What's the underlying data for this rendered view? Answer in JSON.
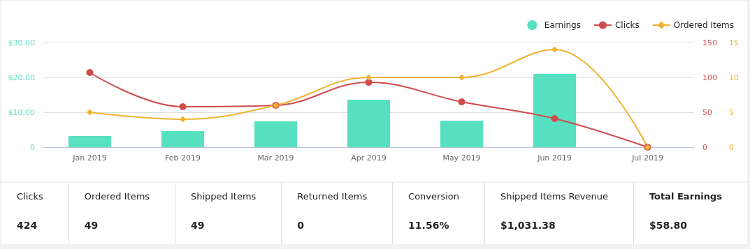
{
  "chart_data": [
    {
      "type": "bar",
      "categories": [
        "Jan 2019",
        "Feb 2019",
        "Mar 2019",
        "Apr 2019",
        "May 2019",
        "Jun 2019",
        "Jul 2019"
      ],
      "series": [
        {
          "name": "Earnings",
          "color": "#57e1c1",
          "values": [
            3.2,
            4.6,
            7.4,
            13.6,
            7.6,
            21,
            0
          ]
        },
        {
          "name": "Clicks",
          "type": "line",
          "axis": "y2",
          "marker": "circle",
          "color": "#d14b4b",
          "values": [
            107,
            58,
            60,
            93,
            65,
            41,
            0
          ]
        },
        {
          "name": "Ordered Items",
          "type": "line",
          "axis": "y3",
          "marker": "diamond",
          "color": "#f0b330",
          "values": [
            5,
            4,
            6,
            10,
            10,
            14,
            0
          ]
        }
      ],
      "ylim": [
        0,
        30
      ],
      "yticks": [
        0,
        {
          "value": 10,
          "label": "$10.00"
        },
        {
          "value": 20,
          "label": "$20.00"
        },
        {
          "value": 30,
          "label": "$30.00"
        }
      ],
      "y2lim": [
        0,
        150
      ],
      "y2ticks": [
        0,
        50,
        100,
        150
      ],
      "y3lim": [
        0,
        15
      ],
      "y3ticks": [
        0,
        5,
        10,
        15
      ],
      "grid": "y",
      "legend": "top right"
    },
    {
      "type": "other",
      "categories": [
        "Clicks",
        "Ordered Items",
        "Shipped Items",
        "Returned Items",
        "Conversion",
        "Shipped Items Revenue",
        "Total Earnings"
      ],
      "annotations": [
        "424",
        "49",
        "49",
        "0",
        "11.56%",
        "$1,031.38",
        "$58.80"
      ]
    }
  ]
}
